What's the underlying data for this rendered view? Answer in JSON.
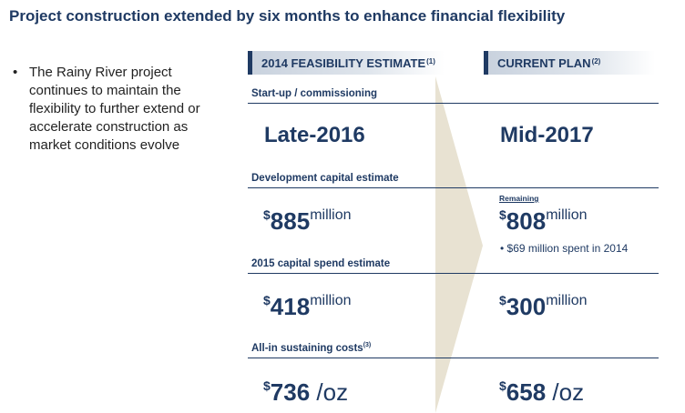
{
  "title": "Project construction extended by six months to enhance financial flexibility",
  "bullet": {
    "marker": "•",
    "text": "The Rainy River project continues to maintain the flexibility to further extend or accelerate construction as market conditions evolve"
  },
  "columns": {
    "left": {
      "label": "2014 FEASIBILITY ESTIMATE",
      "footnote": "(1)"
    },
    "right": {
      "label": "CURRENT PLAN",
      "footnote": "(2)"
    }
  },
  "rows": {
    "startup": {
      "label": "Start-up / commissioning",
      "left": "Late-2016",
      "right": "Mid-2017"
    },
    "devcap": {
      "label": "Development capital estimate",
      "left": {
        "prefix": "$",
        "value": "885",
        "unit": "million"
      },
      "right": {
        "prefix": "$",
        "value": "808",
        "unit": "million",
        "qualifier": "Remaining",
        "note": "• $69 million spent in 2014"
      }
    },
    "spend2015": {
      "label": "2015 capital spend estimate",
      "left": {
        "prefix": "$",
        "value": "418",
        "unit": "million"
      },
      "right": {
        "prefix": "$",
        "value": "300",
        "unit": "million"
      }
    },
    "aisc": {
      "label": "All-in sustaining costs",
      "footnote": "(3)",
      "left": {
        "prefix": "$",
        "value": "736",
        "unit": " /oz"
      },
      "right": {
        "prefix": "$",
        "value": "658",
        "unit": " /oz"
      }
    }
  },
  "colors": {
    "navy": "#1f3a63",
    "arrow": "#e8e2d2",
    "header_bg": "#c9d2de"
  }
}
